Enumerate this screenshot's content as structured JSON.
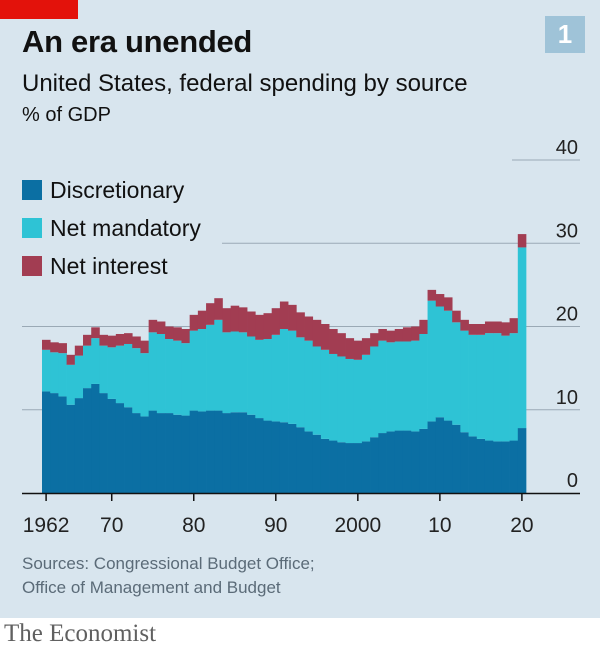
{
  "header": {
    "title": "An era unended",
    "subtitle": "United States, federal spending by source",
    "unit": "% of GDP",
    "chart_number": "1"
  },
  "footer": {
    "sources_line1": "Sources: Congressional Budget Office;",
    "sources_line2": "Office of Management and Budget",
    "brand": "The Economist"
  },
  "colors": {
    "discretionary": "#0b6fa3",
    "net_mandatory": "#2ec3d5",
    "net_interest": "#a23d52",
    "background": "#d8e5ee",
    "gridline": "#9aa9b5",
    "accent_red": "#e3120b"
  },
  "chart_data": {
    "type": "bar",
    "stacked": true,
    "title": "An era unended",
    "subtitle": "United States, federal spending by source",
    "ylabel": "% of GDP",
    "ylim": [
      0,
      40
    ],
    "yticks": [
      0,
      10,
      20,
      30,
      40
    ],
    "y_axis_side": "right",
    "xtick_labels": [
      {
        "year": 1962,
        "label": "1962"
      },
      {
        "year": 1970,
        "label": "70"
      },
      {
        "year": 1980,
        "label": "80"
      },
      {
        "year": 1990,
        "label": "90"
      },
      {
        "year": 2000,
        "label": "2000"
      },
      {
        "year": 2010,
        "label": "10"
      },
      {
        "year": 2020,
        "label": "20"
      }
    ],
    "grid": true,
    "legend_position": "top-left",
    "categories": [
      1962,
      1963,
      1964,
      1965,
      1966,
      1967,
      1968,
      1969,
      1970,
      1971,
      1972,
      1973,
      1974,
      1975,
      1976,
      1977,
      1978,
      1979,
      1980,
      1981,
      1982,
      1983,
      1984,
      1985,
      1986,
      1987,
      1988,
      1989,
      1990,
      1991,
      1992,
      1993,
      1994,
      1995,
      1996,
      1997,
      1998,
      1999,
      2000,
      2001,
      2002,
      2003,
      2004,
      2005,
      2006,
      2007,
      2008,
      2009,
      2010,
      2011,
      2012,
      2013,
      2014,
      2015,
      2016,
      2017,
      2018,
      2019,
      2020
    ],
    "series": [
      {
        "name": "Discretionary",
        "values": [
          12.2,
          12.0,
          11.6,
          10.6,
          11.4,
          12.6,
          13.1,
          12.0,
          11.3,
          10.8,
          10.3,
          9.6,
          9.2,
          9.9,
          9.6,
          9.6,
          9.4,
          9.3,
          9.9,
          9.8,
          9.9,
          9.9,
          9.6,
          9.7,
          9.7,
          9.4,
          9.0,
          8.7,
          8.6,
          8.5,
          8.3,
          7.9,
          7.4,
          7.0,
          6.5,
          6.3,
          6.1,
          6.0,
          6.0,
          6.2,
          6.7,
          7.2,
          7.4,
          7.5,
          7.5,
          7.4,
          7.7,
          8.6,
          9.1,
          8.7,
          8.2,
          7.3,
          6.8,
          6.5,
          6.3,
          6.2,
          6.2,
          6.3,
          7.8
        ]
      },
      {
        "name": "Net mandatory",
        "values": [
          5.0,
          4.9,
          5.2,
          4.8,
          5.1,
          5.1,
          5.5,
          5.7,
          6.2,
          6.9,
          7.6,
          7.8,
          7.6,
          9.4,
          9.5,
          8.9,
          8.9,
          8.7,
          9.6,
          9.9,
          10.3,
          10.9,
          9.7,
          9.7,
          9.6,
          9.4,
          9.4,
          9.8,
          10.4,
          11.2,
          11.2,
          10.8,
          10.9,
          10.6,
          10.7,
          10.4,
          10.3,
          10.1,
          10.0,
          10.4,
          10.9,
          11.1,
          10.7,
          10.7,
          10.7,
          10.9,
          11.4,
          14.5,
          13.3,
          13.2,
          12.3,
          12.2,
          12.2,
          12.5,
          12.9,
          13.0,
          12.7,
          12.9,
          21.7
        ]
      },
      {
        "name": "Net interest",
        "values": [
          1.2,
          1.2,
          1.2,
          1.2,
          1.2,
          1.3,
          1.3,
          1.3,
          1.4,
          1.4,
          1.3,
          1.4,
          1.5,
          1.5,
          1.5,
          1.5,
          1.6,
          1.7,
          1.9,
          2.2,
          2.6,
          2.6,
          2.9,
          3.1,
          3.0,
          3.0,
          3.0,
          3.1,
          3.2,
          3.3,
          3.1,
          3.0,
          2.9,
          3.2,
          3.1,
          3.0,
          2.8,
          2.5,
          2.3,
          2.0,
          1.6,
          1.4,
          1.4,
          1.5,
          1.7,
          1.7,
          1.7,
          1.3,
          1.5,
          1.6,
          1.4,
          1.3,
          1.3,
          1.3,
          1.4,
          1.4,
          1.6,
          1.8,
          1.6
        ]
      }
    ]
  }
}
